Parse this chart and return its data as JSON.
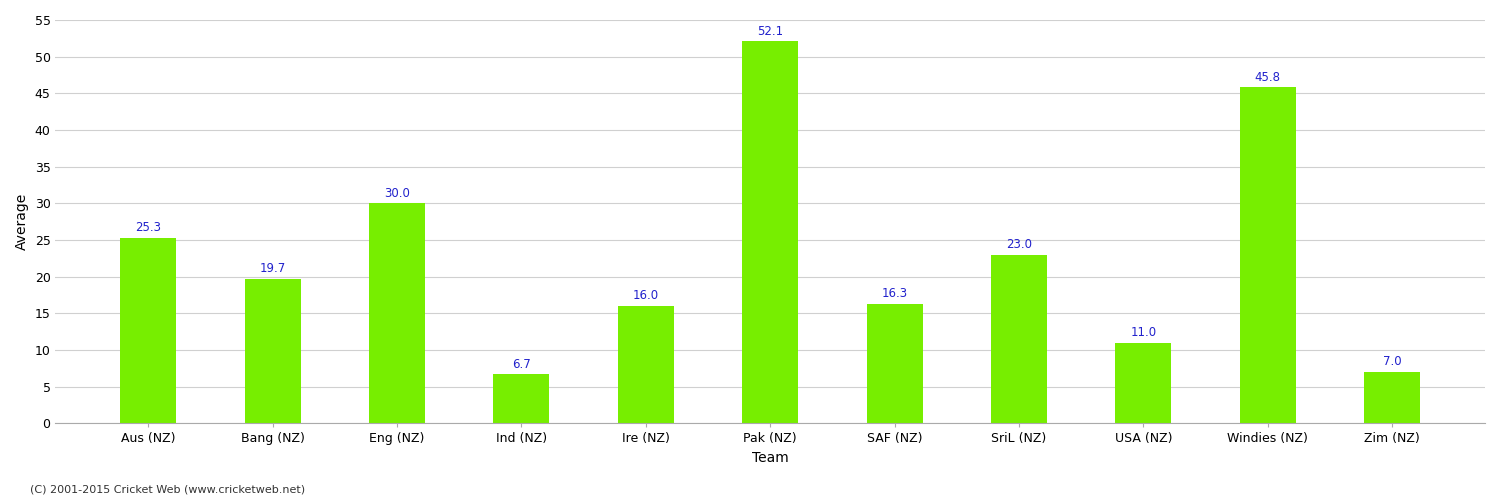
{
  "categories": [
    "Aus (NZ)",
    "Bang (NZ)",
    "Eng (NZ)",
    "Ind (NZ)",
    "Ire (NZ)",
    "Pak (NZ)",
    "SAF (NZ)",
    "SriL (NZ)",
    "USA (NZ)",
    "Windies (NZ)",
    "Zim (NZ)"
  ],
  "values": [
    25.3,
    19.7,
    30.0,
    6.7,
    16.0,
    52.1,
    16.3,
    23.0,
    11.0,
    45.8,
    7.0
  ],
  "bar_color": "#77ee00",
  "bar_edge_color": "#77ee00",
  "label_color": "#2222cc",
  "xlabel": "Team",
  "ylabel": "Average",
  "ylim": [
    0,
    55
  ],
  "yticks": [
    0,
    5,
    10,
    15,
    20,
    25,
    30,
    35,
    40,
    45,
    50,
    55
  ],
  "grid_color": "#d0d0d0",
  "background_color": "#ffffff",
  "footer_text": "(C) 2001-2015 Cricket Web (www.cricketweb.net)",
  "label_fontsize": 8.5,
  "axis_fontsize": 9,
  "bar_width": 0.45
}
